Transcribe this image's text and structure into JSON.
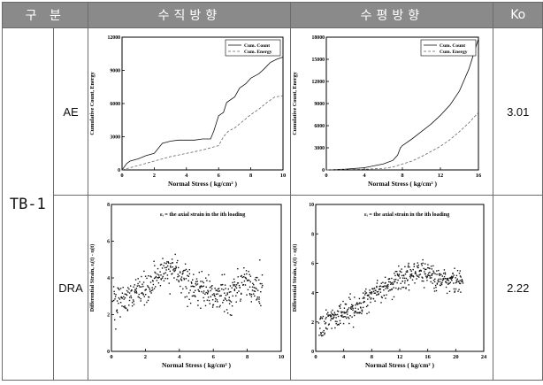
{
  "table": {
    "headers": [
      "구 분",
      "수직방향",
      "수평방향",
      "Ko"
    ],
    "specimen": "TB-1",
    "rows": [
      {
        "method": "AE",
        "ko": "3.01"
      },
      {
        "method": "DRA",
        "ko": "2.22"
      }
    ]
  },
  "chart_data": [
    {
      "type": "line",
      "panel": "AE - 수직방향",
      "xlabel": "Normal Stress  ( kg/cm² )",
      "ylabel": "Cumulative Count, Energy",
      "xlim": [
        0,
        10
      ],
      "ylim": [
        0,
        12000
      ],
      "xticks": [
        "0",
        "2",
        "4",
        "6",
        "8",
        "10"
      ],
      "yticks": [
        "0",
        "3000",
        "6000",
        "9000",
        "12000"
      ],
      "legend_position": "top-right",
      "series": [
        {
          "name": "Cum. Count",
          "style": "solid",
          "x": [
            0,
            0.3,
            0.5,
            1.0,
            1.5,
            2.0,
            2.5,
            3.0,
            3.5,
            4.0,
            4.5,
            5.0,
            5.5,
            5.7,
            6.0,
            6.3,
            6.5,
            7.0,
            7.3,
            7.7,
            8.0,
            8.5,
            8.8,
            9.2,
            9.6,
            10.0
          ],
          "y": [
            0,
            600,
            800,
            1000,
            1300,
            1500,
            2400,
            2600,
            2700,
            2700,
            2700,
            2800,
            2800,
            3500,
            4900,
            5200,
            6100,
            6600,
            7400,
            7800,
            8300,
            8700,
            9100,
            9700,
            10000,
            10200
          ]
        },
        {
          "name": "Cum. Energy",
          "style": "dashed",
          "x": [
            0,
            0.5,
            1.0,
            2.0,
            3.0,
            4.0,
            5.0,
            5.5,
            6.0,
            6.3,
            6.6,
            7.0,
            7.5,
            8.0,
            8.5,
            9.0,
            9.5,
            10.0
          ],
          "y": [
            0,
            200,
            400,
            800,
            1200,
            1500,
            1800,
            2000,
            2200,
            3000,
            3500,
            3800,
            4400,
            5000,
            5500,
            6100,
            6600,
            6700
          ]
        }
      ]
    },
    {
      "type": "line",
      "panel": "AE - 수평방향",
      "xlabel": "Normal Stress  ( kg/cm² )",
      "ylabel": "Cumulative Count, Energy",
      "xlim": [
        0,
        16
      ],
      "ylim": [
        0,
        18000
      ],
      "xticks": [
        "0",
        "4",
        "8",
        "12",
        "16"
      ],
      "yticks": [
        "0",
        "3000",
        "6000",
        "9000",
        "12000",
        "15000",
        "18000"
      ],
      "legend_position": "top-right",
      "series": [
        {
          "name": "Cum. Count",
          "style": "solid",
          "x": [
            0,
            2,
            4,
            6,
            7.0,
            7.5,
            7.8,
            8.0,
            9,
            10,
            11,
            12,
            13,
            14,
            15,
            16
          ],
          "y": [
            0,
            100,
            300,
            800,
            1300,
            2000,
            3000,
            3300,
            4200,
            5200,
            6200,
            7400,
            8800,
            10700,
            13700,
            17800
          ]
        },
        {
          "name": "Cum. Energy",
          "style": "dashed",
          "x": [
            0,
            4,
            6,
            7,
            8,
            9,
            10,
            11,
            12,
            13,
            14,
            15,
            16
          ],
          "y": [
            0,
            100,
            200,
            400,
            800,
            1200,
            1800,
            2500,
            3200,
            4100,
            5200,
            6400,
            7800
          ]
        }
      ]
    },
    {
      "type": "scatter",
      "panel": "DRA - 수직방향",
      "xlabel": "Normal Stress  ( kg/cm² )",
      "ylabel": "Differential Strain, εᵢ(t) - εⱼ(t)",
      "annotation": "εᵢ = the axial strain in the ith loading",
      "xlim": [
        0,
        10
      ],
      "ylim": [
        0,
        8
      ],
      "xticks": [
        "0",
        "2",
        "4",
        "6",
        "8",
        "10"
      ],
      "yticks": [
        "0",
        "2",
        "4",
        "6",
        "8"
      ],
      "trend": {
        "x": [
          0,
          1,
          2,
          3,
          3.5,
          4,
          5,
          6,
          7,
          7.5,
          8,
          8.8
        ],
        "y": [
          2.5,
          3.0,
          3.5,
          4.2,
          4.6,
          4.2,
          3.4,
          3.1,
          3.0,
          3.5,
          3.8,
          3.2
        ]
      },
      "x_range": [
        0.1,
        8.9
      ],
      "spread": 0.6,
      "points": 450
    },
    {
      "type": "scatter",
      "panel": "DRA - 수평방향",
      "xlabel": "Normal Stress  ( kg/cm² )",
      "ylabel": "Differential Strain, εᵢ(t) - εⱼ(t)",
      "annotation": "εᵢ = the axial strain in the ith loading",
      "xlim": [
        0,
        24
      ],
      "ylim": [
        0,
        10
      ],
      "xticks": [
        "0",
        "4",
        "8",
        "12",
        "16",
        "20",
        "24"
      ],
      "yticks": [
        "0",
        "2",
        "4",
        "6",
        "8",
        "10"
      ],
      "trend": {
        "x": [
          0.5,
          2,
          4,
          6,
          8,
          10,
          12,
          14,
          15,
          16,
          18,
          20,
          21
        ],
        "y": [
          1.8,
          2.2,
          2.6,
          3.0,
          3.9,
          4.4,
          4.8,
          5.3,
          5.5,
          5.2,
          4.9,
          4.6,
          4.8
        ]
      },
      "x_range": [
        0.5,
        21.0
      ],
      "spread": 0.6,
      "points": 480
    }
  ]
}
